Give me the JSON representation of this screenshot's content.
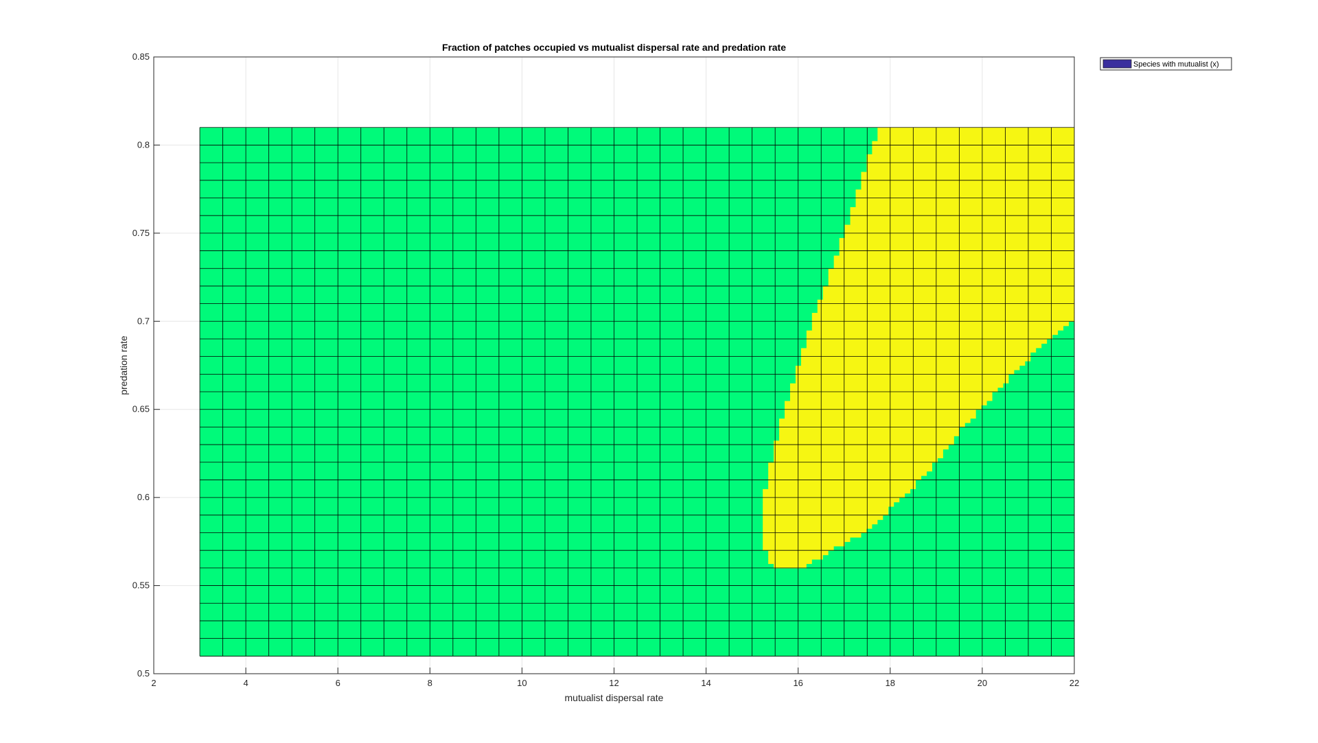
{
  "chart_data": {
    "type": "heatmap",
    "title": "Fraction of patches occupied vs mutualist dispersal rate and predation rate",
    "xlabel": "mutualist dispersal rate",
    "ylabel": "predation rate",
    "xlim": [
      2,
      22
    ],
    "ylim": [
      0.5,
      0.85
    ],
    "xticks": [
      2,
      4,
      6,
      8,
      10,
      12,
      14,
      16,
      18,
      20,
      22
    ],
    "yticks": [
      0.5,
      0.55,
      0.6,
      0.65,
      0.7,
      0.75,
      0.8,
      0.85
    ],
    "xtick_labels": [
      "2",
      "4",
      "6",
      "8",
      "10",
      "12",
      "14",
      "16",
      "18",
      "20",
      "22"
    ],
    "ytick_labels": [
      "0.5",
      "0.55",
      "0.6",
      "0.65",
      "0.7",
      "0.75",
      "0.8",
      "0.85"
    ],
    "grid": true,
    "legend_position": "top-right outside",
    "legend": [
      {
        "name": "Species with mutualist (x)",
        "color": "#3a2f9e"
      }
    ],
    "x_grid": {
      "start": 3,
      "end": 22,
      "step": 0.5
    },
    "y_grid": {
      "start": 0.51,
      "end": 0.81,
      "step": 0.01
    },
    "colors": {
      "absent": "#00fa7a",
      "present": "#f6f612",
      "edge": "#000000"
    },
    "present_region": {
      "left_boundary": [
        [
          0.56,
          15.45
        ],
        [
          0.57,
          15.3
        ],
        [
          0.58,
          15.2
        ],
        [
          0.6,
          15.25
        ],
        [
          0.62,
          15.4
        ],
        [
          0.65,
          15.7
        ],
        [
          0.7,
          16.3
        ],
        [
          0.75,
          17.0
        ],
        [
          0.81,
          17.75
        ]
      ],
      "right_boundary": [
        [
          0.56,
          16.1
        ],
        [
          0.57,
          16.75
        ],
        [
          0.58,
          17.4
        ],
        [
          0.59,
          17.85
        ],
        [
          0.6,
          18.3
        ],
        [
          0.61,
          18.65
        ],
        [
          0.62,
          19.0
        ],
        [
          0.63,
          19.3
        ],
        [
          0.64,
          19.6
        ],
        [
          0.65,
          19.95
        ],
        [
          0.66,
          20.3
        ],
        [
          0.67,
          20.65
        ],
        [
          0.68,
          21.05
        ],
        [
          0.69,
          21.5
        ],
        [
          0.7,
          22.0
        ],
        [
          0.81,
          22.1
        ]
      ]
    }
  }
}
